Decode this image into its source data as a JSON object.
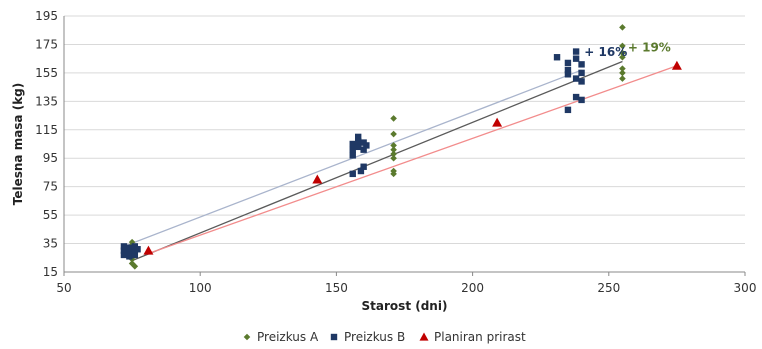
{
  "colors": {
    "series_a": "#5b7a2e",
    "series_b": "#1f3864",
    "series_c": "#c00000",
    "trend_a": "#5a5a5a",
    "trend_b": "#a9b4cc",
    "trend_c": "#f28c8c",
    "grid": "#d9d9d9",
    "axis": "#888888"
  },
  "chart_data": {
    "type": "scatter",
    "xlabel": "Starost (dni)",
    "ylabel": "Telesna masa (kg)",
    "xlim": [
      50,
      300
    ],
    "ylim": [
      15,
      195
    ],
    "xticks": [
      "50",
      "100",
      "150",
      "200",
      "250",
      "300"
    ],
    "yticks": [
      "15",
      "35",
      "55",
      "75",
      "95",
      "115",
      "135",
      "155",
      "175",
      "195"
    ],
    "grid": "horizontal",
    "legend_position": "bottom",
    "legend": [
      "Preizkus A",
      "Preizkus B",
      "Planiran prirast"
    ],
    "series": [
      {
        "name": "Preizkus A",
        "marker": "diamond",
        "points": [
          [
            75,
            21
          ],
          [
            75,
            24
          ],
          [
            75,
            26
          ],
          [
            75,
            28
          ],
          [
            75,
            30
          ],
          [
            75,
            32
          ],
          [
            75,
            34
          ],
          [
            75,
            36
          ],
          [
            76,
            19
          ],
          [
            74,
            27
          ],
          [
            171,
            84
          ],
          [
            171,
            86
          ],
          [
            171,
            95
          ],
          [
            171,
            98
          ],
          [
            171,
            101
          ],
          [
            171,
            104
          ],
          [
            171,
            112
          ],
          [
            171,
            123
          ],
          [
            255,
            151
          ],
          [
            255,
            155
          ],
          [
            255,
            158
          ],
          [
            255,
            166
          ],
          [
            255,
            169
          ],
          [
            255,
            174
          ],
          [
            255,
            187
          ]
        ],
        "trendline": [
          [
            75,
            23
          ],
          [
            255,
            163
          ]
        ]
      },
      {
        "name": "Preizkus B",
        "marker": "square",
        "points": [
          [
            72,
            27
          ],
          [
            72,
            30
          ],
          [
            72,
            33
          ],
          [
            74,
            26
          ],
          [
            74,
            29
          ],
          [
            74,
            32
          ],
          [
            76,
            27
          ],
          [
            76,
            30
          ],
          [
            76,
            33
          ],
          [
            77,
            31
          ],
          [
            156,
            84
          ],
          [
            156,
            97
          ],
          [
            156,
            101
          ],
          [
            156,
            105
          ],
          [
            158,
            103
          ],
          [
            158,
            107
          ],
          [
            158,
            110
          ],
          [
            159,
            86
          ],
          [
            160,
            89
          ],
          [
            160,
            101
          ],
          [
            160,
            106
          ],
          [
            161,
            104
          ],
          [
            231,
            166
          ],
          [
            235,
            129
          ],
          [
            235,
            154
          ],
          [
            235,
            157
          ],
          [
            235,
            162
          ],
          [
            238,
            138
          ],
          [
            238,
            151
          ],
          [
            238,
            165
          ],
          [
            238,
            170
          ],
          [
            240,
            136
          ],
          [
            240,
            149
          ],
          [
            240,
            155
          ],
          [
            240,
            161
          ]
        ],
        "trendline": [
          [
            72,
            33
          ],
          [
            240,
            157
          ]
        ]
      },
      {
        "name": "Planiran prirast",
        "marker": "triangle",
        "points": [
          [
            81,
            30
          ],
          [
            143,
            80
          ],
          [
            209,
            120
          ],
          [
            275,
            160
          ]
        ],
        "trendline": [
          [
            81,
            28
          ],
          [
            275,
            160
          ]
        ]
      }
    ],
    "annotations": [
      {
        "text": "+ 16%",
        "series": "Preizkus B",
        "x": 241,
        "y": 167
      },
      {
        "text": "+ 19%",
        "series": "Preizkus A",
        "x": 257,
        "y": 170
      }
    ]
  }
}
